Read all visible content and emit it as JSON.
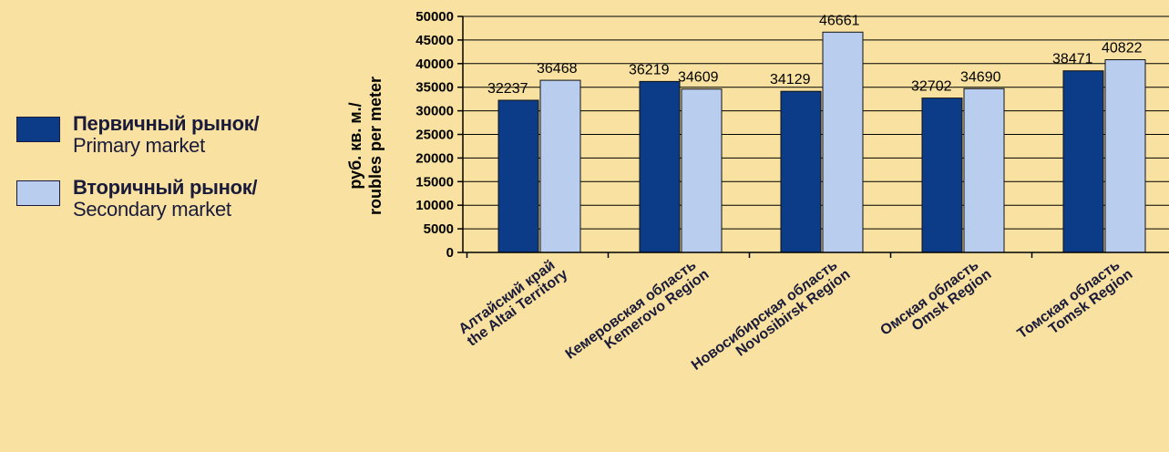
{
  "chart_data": {
    "type": "bar",
    "categories": [
      {
        "ru": "Алтайский край",
        "en": "the Altai Territory",
        "highlight": false
      },
      {
        "ru": "Кемеровская область",
        "en": "Kemerovo Region",
        "highlight": false
      },
      {
        "ru": "Новосибирская область",
        "en": "Novosibirsk Region",
        "highlight": false
      },
      {
        "ru": "Омская область",
        "en": "Omsk Region",
        "highlight": true
      },
      {
        "ru": "Томская область",
        "en": "Tomsk Region",
        "highlight": false
      }
    ],
    "series": [
      {
        "name": "Первичный рынок/ Primary market",
        "name_ru": "Первичный рынок/",
        "name_en": "Primary market",
        "color": "#0c3c88",
        "values": [
          32237,
          36219,
          34129,
          32702,
          38471
        ]
      },
      {
        "name": "Вторичный рынок/ Secondary market",
        "name_ru": "Вторичный рынок/",
        "name_en": "Secondary market",
        "color": "#b9cdee",
        "values": [
          36468,
          34609,
          46661,
          34690,
          40822
        ]
      }
    ],
    "ylabel_line1": "руб. кв. м./",
    "ylabel_line2": "roubles per meter",
    "ylim": [
      0,
      50000
    ],
    "ytick_step": 5000,
    "grid": true,
    "legend_placement": "left",
    "colors": {
      "background": "#f9e2a1",
      "plot_background": "#f9e2a1",
      "gridline": "#000000",
      "highlight_label": "#3a2fae",
      "label": "#1a1a3a"
    }
  }
}
